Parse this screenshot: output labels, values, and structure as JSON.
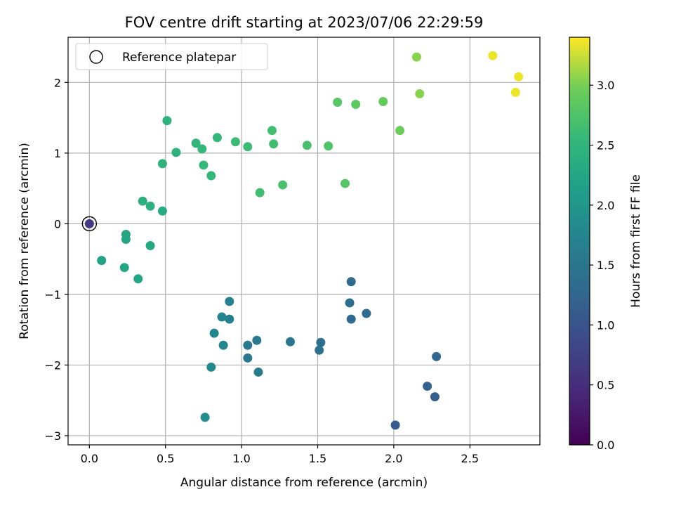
{
  "chart_data": {
    "type": "scatter",
    "title": "FOV centre drift starting at 2023/07/06 22:29:59",
    "xlabel": "Angular distance from reference (arcmin)",
    "ylabel": "Rotation from reference (arcmin)",
    "xlim": [
      -0.14,
      2.96
    ],
    "ylim": [
      -3.13,
      2.64
    ],
    "xticks": [
      0.0,
      0.5,
      1.0,
      1.5,
      2.0,
      2.5
    ],
    "xtick_labels": [
      "0.0",
      "0.5",
      "1.0",
      "1.5",
      "2.0",
      "2.5"
    ],
    "yticks": [
      -3,
      -2,
      -1,
      0,
      1,
      2
    ],
    "ytick_labels": [
      "−3",
      "−2",
      "−1",
      "0",
      "1",
      "2"
    ],
    "grid": true,
    "legend": {
      "placement": "top-left",
      "entries": [
        {
          "label": "Reference platepar",
          "marker": "open-circle"
        }
      ]
    },
    "colorbar": {
      "label": "Hours from first FF file",
      "colormap": "viridis",
      "range": [
        0.0,
        3.4
      ],
      "ticks": [
        0.0,
        0.5,
        1.0,
        1.5,
        2.0,
        2.5,
        3.0
      ],
      "tick_labels": [
        "0.0",
        "0.5",
        "1.0",
        "1.5",
        "2.0",
        "2.5",
        "3.0"
      ]
    },
    "reference_point": {
      "x": 0.0,
      "y": 0.0
    },
    "points": [
      {
        "x": 0.0,
        "y": 0.0,
        "hours": 0.65
      },
      {
        "x": 2.01,
        "y": -2.85,
        "hours": 1.1
      },
      {
        "x": 2.27,
        "y": -2.45,
        "hours": 1.15
      },
      {
        "x": 2.22,
        "y": -2.3,
        "hours": 1.2
      },
      {
        "x": 2.28,
        "y": -1.88,
        "hours": 1.25
      },
      {
        "x": 1.72,
        "y": -1.35,
        "hours": 1.3
      },
      {
        "x": 1.82,
        "y": -1.27,
        "hours": 1.3
      },
      {
        "x": 1.71,
        "y": -1.12,
        "hours": 1.35
      },
      {
        "x": 1.72,
        "y": -0.82,
        "hours": 1.3
      },
      {
        "x": 1.51,
        "y": -1.79,
        "hours": 1.4
      },
      {
        "x": 1.52,
        "y": -1.68,
        "hours": 1.4
      },
      {
        "x": 1.32,
        "y": -1.67,
        "hours": 1.5
      },
      {
        "x": 1.1,
        "y": -1.65,
        "hours": 1.55
      },
      {
        "x": 1.04,
        "y": -1.72,
        "hours": 1.55
      },
      {
        "x": 1.04,
        "y": -1.9,
        "hours": 1.55
      },
      {
        "x": 1.11,
        "y": -2.1,
        "hours": 1.6
      },
      {
        "x": 0.92,
        "y": -1.35,
        "hours": 1.65
      },
      {
        "x": 0.92,
        "y": -1.1,
        "hours": 1.7
      },
      {
        "x": 0.87,
        "y": -1.32,
        "hours": 1.7
      },
      {
        "x": 0.82,
        "y": -1.55,
        "hours": 1.75
      },
      {
        "x": 0.88,
        "y": -1.72,
        "hours": 1.75
      },
      {
        "x": 0.8,
        "y": -2.03,
        "hours": 1.8
      },
      {
        "x": 0.76,
        "y": -2.74,
        "hours": 1.85
      },
      {
        "x": 0.08,
        "y": -0.52,
        "hours": 2.2
      },
      {
        "x": 0.23,
        "y": -0.62,
        "hours": 2.25
      },
      {
        "x": 0.32,
        "y": -0.78,
        "hours": 2.25
      },
      {
        "x": 0.24,
        "y": -0.15,
        "hours": 2.25
      },
      {
        "x": 0.24,
        "y": -0.22,
        "hours": 2.25
      },
      {
        "x": 0.4,
        "y": -0.31,
        "hours": 2.3
      },
      {
        "x": 0.48,
        "y": 0.18,
        "hours": 2.35
      },
      {
        "x": 0.35,
        "y": 0.32,
        "hours": 2.4
      },
      {
        "x": 0.4,
        "y": 0.25,
        "hours": 2.4
      },
      {
        "x": 0.48,
        "y": 0.85,
        "hours": 2.45
      },
      {
        "x": 0.57,
        "y": 1.01,
        "hours": 2.45
      },
      {
        "x": 0.51,
        "y": 1.46,
        "hours": 2.45
      },
      {
        "x": 0.7,
        "y": 1.14,
        "hours": 2.5
      },
      {
        "x": 0.74,
        "y": 1.06,
        "hours": 2.55
      },
      {
        "x": 0.75,
        "y": 0.83,
        "hours": 2.55
      },
      {
        "x": 0.8,
        "y": 0.68,
        "hours": 2.55
      },
      {
        "x": 0.84,
        "y": 1.22,
        "hours": 2.55
      },
      {
        "x": 0.96,
        "y": 1.16,
        "hours": 2.6
      },
      {
        "x": 1.04,
        "y": 1.09,
        "hours": 2.6
      },
      {
        "x": 1.12,
        "y": 0.44,
        "hours": 2.65
      },
      {
        "x": 1.2,
        "y": 1.32,
        "hours": 2.65
      },
      {
        "x": 1.21,
        "y": 1.13,
        "hours": 2.65
      },
      {
        "x": 1.27,
        "y": 0.55,
        "hours": 2.7
      },
      {
        "x": 1.43,
        "y": 1.11,
        "hours": 2.7
      },
      {
        "x": 1.57,
        "y": 1.1,
        "hours": 2.75
      },
      {
        "x": 1.63,
        "y": 1.72,
        "hours": 2.8
      },
      {
        "x": 1.68,
        "y": 0.57,
        "hours": 2.8
      },
      {
        "x": 1.75,
        "y": 1.69,
        "hours": 2.85
      },
      {
        "x": 1.93,
        "y": 1.73,
        "hours": 2.9
      },
      {
        "x": 2.04,
        "y": 1.32,
        "hours": 2.95
      },
      {
        "x": 2.15,
        "y": 2.36,
        "hours": 3.05
      },
      {
        "x": 2.17,
        "y": 1.84,
        "hours": 3.05
      },
      {
        "x": 2.65,
        "y": 2.38,
        "hours": 3.35
      },
      {
        "x": 2.8,
        "y": 1.86,
        "hours": 3.35
      },
      {
        "x": 2.82,
        "y": 2.08,
        "hours": 3.35
      }
    ]
  }
}
